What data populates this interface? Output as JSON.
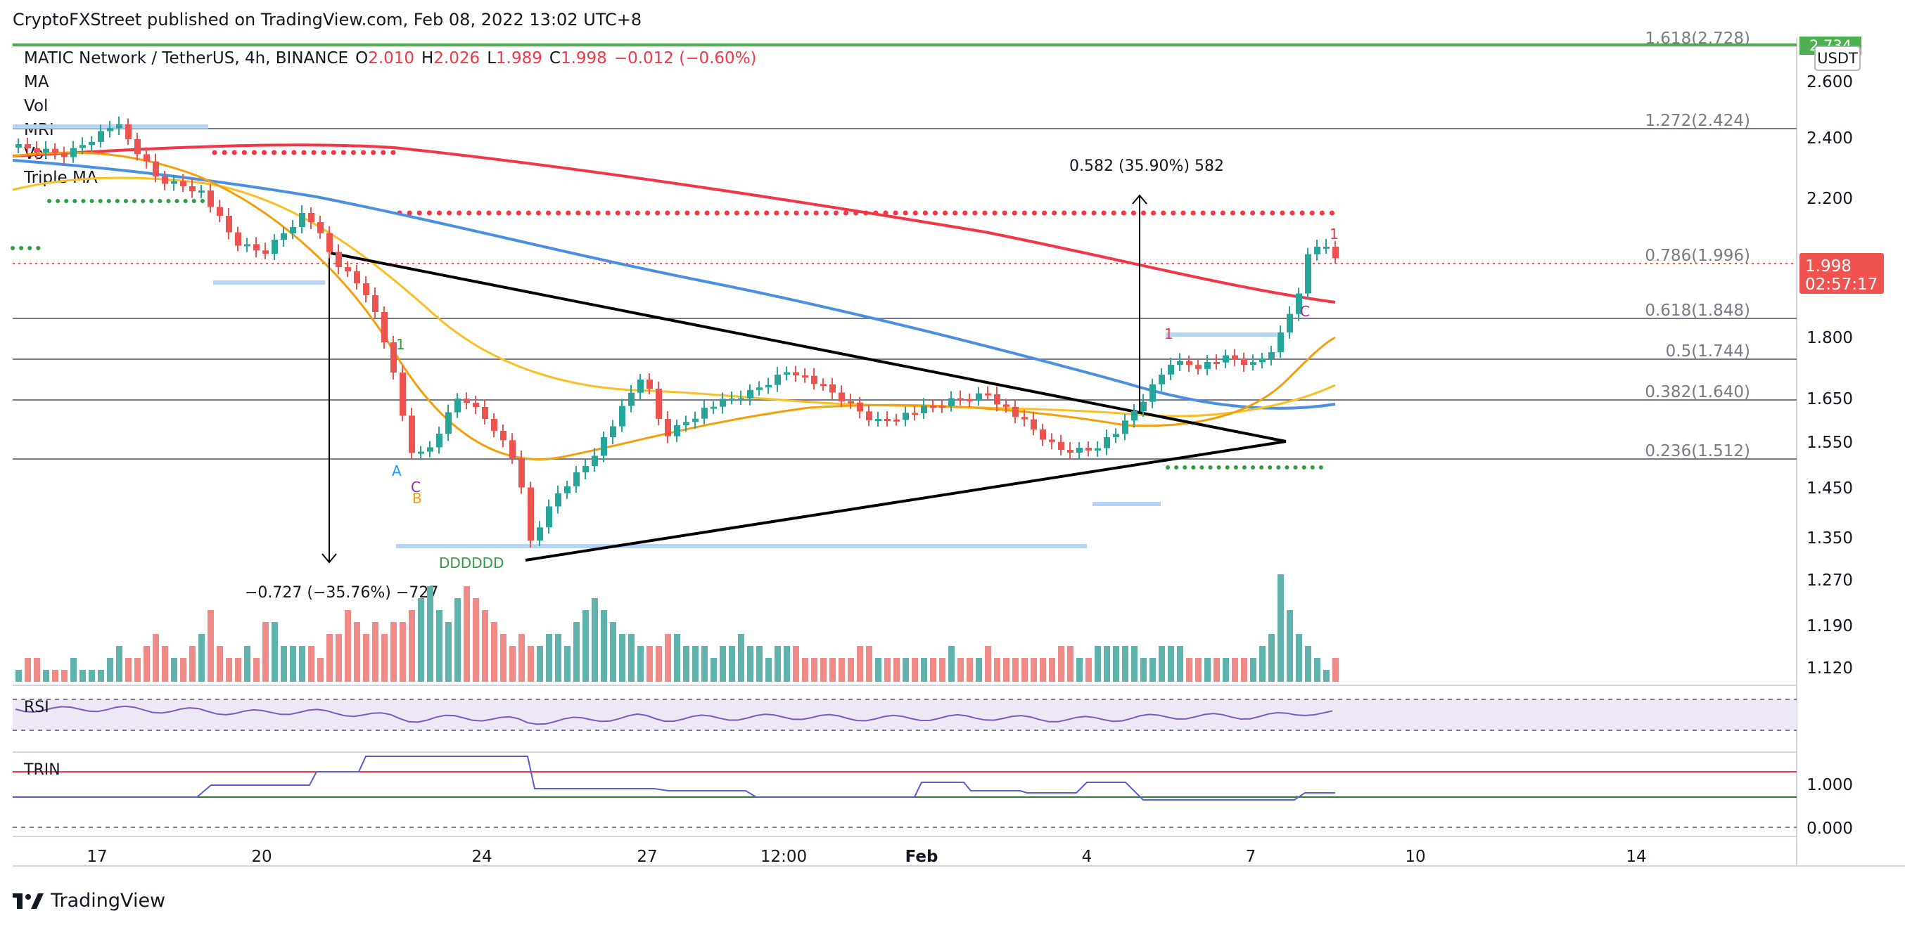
{
  "header": {
    "publisher_line": "CryptoFXStreet published on TradingView.com, Feb 08, 2022 13:02 UTC+8"
  },
  "legend": {
    "symbol": "MATIC Network / TetherUS, 4h, BINANCE",
    "open_label": "O",
    "open": "2.010",
    "high_label": "H",
    "high": "2.026",
    "low_label": "L",
    "low": "1.989",
    "close_label": "C",
    "close": "1.998",
    "change": "−0.012 (−0.60%)",
    "indicators": [
      "MA",
      "Vol",
      "MRI",
      "Vol",
      "Triple MA"
    ]
  },
  "price_axis": {
    "currency": "USDT",
    "ticks": [
      "2.600",
      "2.400",
      "2.200",
      "1.800",
      "1.650",
      "1.550",
      "1.450",
      "1.350",
      "1.270",
      "1.190",
      "1.120"
    ],
    "current_price": "1.998",
    "countdown": "02:57:17",
    "top_badge": "2.734"
  },
  "fib_levels": [
    {
      "label": "1.618(2.728)"
    },
    {
      "label": "1.272(2.424)"
    },
    {
      "label": "0.786(1.996)"
    },
    {
      "label": "0.618(1.848)"
    },
    {
      "label": "0.5(1.744)"
    },
    {
      "label": "0.382(1.640)"
    },
    {
      "label": "0.236(1.512)"
    }
  ],
  "annotations": {
    "up_move": "0.582 (35.90%) 582",
    "down_move": "−0.727 (−35.76%) −727",
    "dd": "DDDDDD"
  },
  "time_axis": {
    "ticks": [
      "17",
      "20",
      "24",
      "27",
      "12:00",
      "Feb",
      "4",
      "7",
      "10",
      "14"
    ]
  },
  "panes": {
    "rsi_label": "RSI",
    "trin_label": "TRIN",
    "trin_ticks": [
      "1.000",
      "0.000"
    ]
  },
  "brand": "TradingView",
  "colors": {
    "up": "#26a69a",
    "down": "#ef5350",
    "ma_red": "#f23645",
    "ma_blue": "#4a90e2",
    "ma_orange": "#f59e0b",
    "ma_gold": "#fbbf24"
  },
  "chart_data": {
    "type": "candlestick",
    "title": "MATIC Network / TetherUS, 4h, BINANCE",
    "ylim": [
      1.09,
      2.74
    ],
    "volume_heights": [
      0.1,
      0.2,
      0.2,
      0.1,
      0.1,
      0.1,
      0.2,
      0.1,
      0.1,
      0.1,
      0.2,
      0.3,
      0.2,
      0.2,
      0.3,
      0.4,
      0.3,
      0.2,
      0.2,
      0.3,
      0.4,
      0.6,
      0.3,
      0.2,
      0.2,
      0.3,
      0.2,
      0.5,
      0.5,
      0.3,
      0.3,
      0.3,
      0.3,
      0.2,
      0.4,
      0.4,
      0.6,
      0.5,
      0.4,
      0.5,
      0.4,
      0.5,
      0.5,
      0.6,
      0.7,
      0.8,
      0.6,
      0.5,
      0.7,
      0.8,
      0.7,
      0.6,
      0.5,
      0.4,
      0.3,
      0.4,
      0.3,
      0.3,
      0.4,
      0.4,
      0.3,
      0.5,
      0.6,
      0.7,
      0.6,
      0.5,
      0.4,
      0.4,
      0.3,
      0.3,
      0.3,
      0.4,
      0.4,
      0.3,
      0.3,
      0.3,
      0.2,
      0.3,
      0.3,
      0.4,
      0.3,
      0.3,
      0.2,
      0.3,
      0.3,
      0.3,
      0.2,
      0.2,
      0.2,
      0.2,
      0.2,
      0.2,
      0.3,
      0.3,
      0.2,
      0.2,
      0.2,
      0.2,
      0.2,
      0.2,
      0.2,
      0.2,
      0.3,
      0.2,
      0.2,
      0.2,
      0.3,
      0.2,
      0.2,
      0.2,
      0.2,
      0.2,
      0.2,
      0.2,
      0.3,
      0.3,
      0.2,
      0.2,
      0.3,
      0.3,
      0.3,
      0.3,
      0.3,
      0.2,
      0.2,
      0.3,
      0.3,
      0.3,
      0.2,
      0.2,
      0.2,
      0.2,
      0.2,
      0.2,
      0.2,
      0.2,
      0.3,
      0.4,
      0.9,
      0.6,
      0.4,
      0.3,
      0.2
    ]
  }
}
